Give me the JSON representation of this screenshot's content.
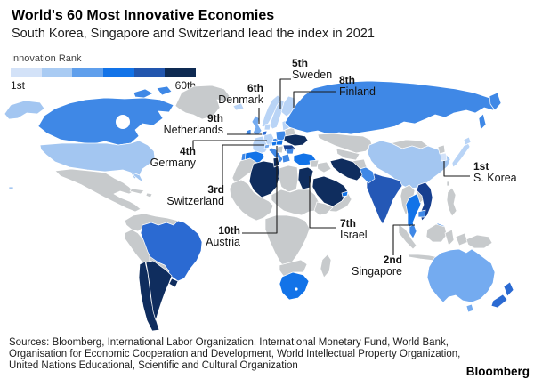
{
  "header": {
    "title": "World's 60 Most Innovative Economies",
    "subtitle": "South Korea, Singapore and Switzerland lead the index in 2021"
  },
  "legend": {
    "label": "Innovation Rank",
    "min_label": "1st",
    "max_label": "60th",
    "colors": [
      "#d3e2f8",
      "#a9cbf3",
      "#5f9fec",
      "#1273e8",
      "#2256ae",
      "#0e2a52"
    ]
  },
  "map": {
    "leader_color": "#1a1a1a",
    "border_color": "#ffffff",
    "ocean_color": "#ffffff",
    "palette": {
      "unranked": "#c7cacc",
      "lightest": "#d3e2f8",
      "light": "#a3c6f1",
      "light2": "#b9d4f6",
      "mediumlight": "#74abf0",
      "medium": "#3f88e6",
      "bright": "#1273e8",
      "strong": "#2b6ad2",
      "dark": "#2458b6",
      "darker": "#173f8f",
      "navy": "#0f2d5e"
    },
    "country_fills": {
      "greenland": "unranked",
      "canada": "medium",
      "usa": "light",
      "mexico": "unranked",
      "cuba": "unranked",
      "hispaniola": "unranked",
      "colombia_venezuela": "unranked",
      "peru": "unranked",
      "brazil": "strong",
      "bolivia_paraguay": "unranked",
      "chile": "navy",
      "argentina": "navy",
      "uruguay": "navy",
      "iceland": "light2",
      "norway": "light2",
      "sweden": "light2",
      "finland": "light2",
      "denmark": "light2",
      "uk": "mediumlight",
      "ireland": "medium",
      "netherlands": "strong",
      "germany": "light2",
      "france": "light2",
      "spain": "bright",
      "portugal": "medium",
      "switzerland": "mediumlight",
      "italy": "medium",
      "austria": "bright",
      "czech": "medium",
      "poland": "medium",
      "baltics": "light2",
      "belarus": "unranked",
      "ukraine": "navy",
      "romania": "darker",
      "hungary": "bright",
      "balkans": "unranked",
      "bulgaria": "medium",
      "greece": "medium",
      "turkey": "bright",
      "russia": "medium",
      "kazakhstan": "unranked",
      "central_asia": "unranked",
      "afghanistan": "unranked",
      "mongolia": "unranked",
      "china": "light",
      "taiwan": "unranked",
      "north_korea": "unranked",
      "south_korea": "lightest",
      "japan": "light2",
      "india": "dark",
      "pakistan": "medium",
      "iran": "navy",
      "iraq": "unranked",
      "syria": "unranked",
      "israel": "bright",
      "saudi_arabia": "navy",
      "yemen_oman": "unranked",
      "uae": "bright",
      "morocco": "unranked",
      "algeria": "navy",
      "tunisia": "navy",
      "libya": "unranked",
      "egypt": "navy",
      "west_africa": "unranked",
      "sahel": "unranked",
      "horn_of_africa": "unranked",
      "central_africa": "unranked",
      "namibia_botswana": "unranked",
      "south_africa": "bright",
      "madagascar": "unranked",
      "myanmar": "unranked",
      "thailand": "bright",
      "laos": "unranked",
      "vietnam": "darker",
      "cambodia": "medium",
      "malaysia": "medium",
      "sumatra": "unranked",
      "borneo_indonesia": "unranked",
      "java": "unranked",
      "sulawesi": "unranked",
      "maluku": "unranked",
      "philippines": "unranked",
      "papua_new_guinea": "unranked",
      "australia": "mediumlight",
      "new_zealand": "strong"
    },
    "annotations": [
      {
        "rank": "1st",
        "name": "S. Korea"
      },
      {
        "rank": "2nd",
        "name": "Singapore"
      },
      {
        "rank": "3rd",
        "name": "Switzerland"
      },
      {
        "rank": "4th",
        "name": "Germany"
      },
      {
        "rank": "5th",
        "name": "Sweden"
      },
      {
        "rank": "6th",
        "name": "Denmark"
      },
      {
        "rank": "7th",
        "name": "Israel"
      },
      {
        "rank": "8th",
        "name": "Finland"
      },
      {
        "rank": "9th",
        "name": "Netherlands"
      },
      {
        "rank": "10th",
        "name": "Austria"
      }
    ]
  },
  "footer": {
    "sources_lines": [
      "Sources: Bloomberg, International Labor Organization, International Monetary Fund, World Bank,",
      "Organisation for Economic Cooperation and Development, World Intellectual Property Organization,",
      "United Nations Educational, Scientific and Cultural Organization"
    ],
    "brand": "Bloomberg"
  },
  "chart_data": {
    "type": "heatmap",
    "subtype": "choropleth-world-map",
    "title": "World's 60 Most Innovative Economies",
    "subtitle": "South Korea, Singapore and Switzerland lead the index in 2021",
    "legend": {
      "label": "Innovation Rank",
      "scale_min": "1st",
      "scale_max": "60th",
      "colors": [
        "#d3e2f8",
        "#a9cbf3",
        "#5f9fec",
        "#1273e8",
        "#2256ae",
        "#0e2a52"
      ],
      "position": "top-left"
    },
    "annotated_rankings": [
      {
        "rank": 1,
        "economy": "S. Korea"
      },
      {
        "rank": 2,
        "economy": "Singapore"
      },
      {
        "rank": 3,
        "economy": "Switzerland"
      },
      {
        "rank": 4,
        "economy": "Germany"
      },
      {
        "rank": 5,
        "economy": "Sweden"
      },
      {
        "rank": 6,
        "economy": "Denmark"
      },
      {
        "rank": 7,
        "economy": "Israel"
      },
      {
        "rank": 8,
        "economy": "Finland"
      },
      {
        "rank": 9,
        "economy": "Netherlands"
      },
      {
        "rank": 10,
        "economy": "Austria"
      }
    ]
  }
}
